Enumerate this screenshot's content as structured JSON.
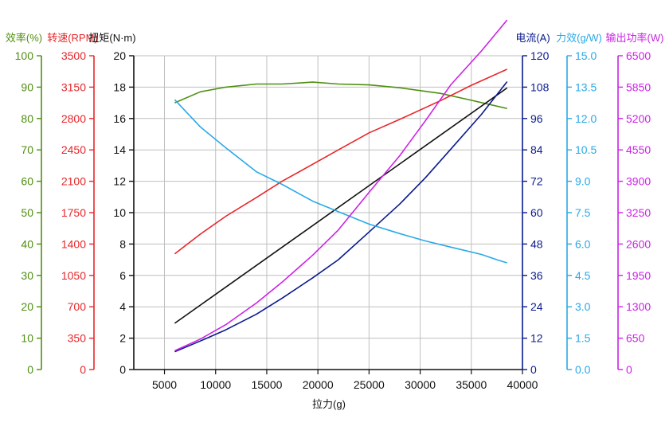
{
  "chart_data": {
    "type": "line",
    "xlabel": "拉力(g)",
    "x_ticks": [
      5000,
      10000,
      15000,
      20000,
      25000,
      30000,
      35000,
      40000
    ],
    "xlim": [
      2000,
      40000
    ],
    "grid": true,
    "axes": [
      {
        "id": "eff",
        "label": "效率(%)",
        "color": "#4e8f0f",
        "side": "left",
        "ylim": [
          0,
          100
        ],
        "ticks": [
          0,
          10,
          20,
          30,
          40,
          50,
          60,
          70,
          80,
          90,
          100
        ],
        "tick_labels": [
          "0",
          "10",
          "20",
          "30",
          "40",
          "50",
          "60",
          "70",
          "80",
          "90",
          "100"
        ]
      },
      {
        "id": "rpm",
        "label": "转速(RPM)",
        "color": "#e8262a",
        "side": "left",
        "ylim": [
          0,
          3500
        ],
        "ticks": [
          0,
          350,
          700,
          1050,
          1400,
          1750,
          2100,
          2450,
          2800,
          3150,
          3500
        ],
        "tick_labels": [
          "0",
          "350",
          "700",
          "1050",
          "1400",
          "1750",
          "2100",
          "2450",
          "2800",
          "3150",
          "3500"
        ]
      },
      {
        "id": "torque",
        "label": "扭矩(N·m)",
        "color": "#111111",
        "side": "left",
        "ylim": [
          0,
          20
        ],
        "ticks": [
          0,
          2,
          4,
          6,
          8,
          10,
          12,
          14,
          16,
          18,
          20
        ],
        "tick_labels": [
          "0",
          "2",
          "4",
          "6",
          "8",
          "10",
          "12",
          "14",
          "16",
          "18",
          "20"
        ]
      },
      {
        "id": "current",
        "label": "电流(A)",
        "color": "#0a1a8c",
        "side": "right",
        "ylim": [
          0,
          120
        ],
        "ticks": [
          0,
          12,
          24,
          36,
          48,
          60,
          72,
          84,
          96,
          108,
          120
        ],
        "tick_labels": [
          "0",
          "12",
          "24",
          "36",
          "48",
          "60",
          "72",
          "84",
          "96",
          "108",
          "120"
        ]
      },
      {
        "id": "power_eff",
        "label": "力效(g/W)",
        "color": "#29a9e6",
        "side": "right",
        "ylim": [
          0,
          15
        ],
        "ticks": [
          0,
          1.5,
          3,
          4.5,
          6,
          7.5,
          9,
          10.5,
          12,
          13.5,
          15
        ],
        "tick_labels": [
          "0.0",
          "1.5",
          "3.0",
          "4.5",
          "6.0",
          "7.5",
          "9.0",
          "10.5",
          "12.0",
          "13.5",
          "15.0"
        ]
      },
      {
        "id": "power",
        "label": "输出功率(W)",
        "color": "#cc22e6",
        "side": "right",
        "ylim": [
          0,
          6500
        ],
        "ticks": [
          0,
          650,
          1300,
          1950,
          2600,
          3250,
          3900,
          4550,
          5200,
          5850,
          6500
        ],
        "tick_labels": [
          "0",
          "650",
          "1300",
          "1950",
          "2600",
          "3250",
          "3900",
          "4550",
          "5200",
          "5850",
          "6500"
        ]
      }
    ],
    "series": [
      {
        "axis": "eff",
        "color": "#4e8f0f",
        "x": [
          6000,
          8500,
          11000,
          14000,
          16500,
          19500,
          22000,
          25000,
          28000,
          32000,
          35000,
          38500
        ],
        "y": [
          85,
          88.5,
          90,
          91,
          91,
          91.6,
          91,
          90.7,
          89.8,
          88,
          85.8,
          83.2
        ]
      },
      {
        "axis": "rpm",
        "color": "#e8262a",
        "x": [
          6000,
          8500,
          11000,
          14000,
          16500,
          19500,
          22000,
          25000,
          28000,
          32000,
          35000,
          38500
        ],
        "y": [
          1290,
          1510,
          1710,
          1920,
          2100,
          2290,
          2450,
          2640,
          2790,
          3000,
          3170,
          3350
        ]
      },
      {
        "axis": "torque",
        "color": "#111111",
        "x": [
          6000,
          38500
        ],
        "y": [
          2.95,
          17.95
        ]
      },
      {
        "axis": "current",
        "color": "#0a1a8c",
        "x": [
          6000,
          8500,
          11000,
          14000,
          16500,
          19500,
          22000,
          25000,
          28000,
          30500,
          33000,
          36000,
          38500
        ],
        "y": [
          6.8,
          10.9,
          15.2,
          21.2,
          27.3,
          35.1,
          42,
          52.6,
          63.3,
          73.3,
          84.3,
          97.6,
          110.1
        ]
      },
      {
        "axis": "power_eff",
        "color": "#29a9e6",
        "x": [
          6000,
          8500,
          11000,
          14000,
          16500,
          19500,
          22000,
          25000,
          28000,
          30500,
          33000,
          36000,
          37500,
          38500
        ],
        "y": [
          12.9,
          11.6,
          10.6,
          9.45,
          8.85,
          8.05,
          7.55,
          6.95,
          6.5,
          6.15,
          5.85,
          5.5,
          5.25,
          5.1
        ]
      },
      {
        "axis": "power",
        "color": "#cc22e6",
        "x": [
          6000,
          8500,
          11000,
          14000,
          16500,
          19500,
          22000,
          25000,
          28000,
          30500,
          33000,
          36000,
          38500
        ],
        "y": [
          390,
          630,
          930,
          1380,
          1810,
          2370,
          2890,
          3670,
          4430,
          5150,
          5900,
          6600,
          7240
        ]
      }
    ]
  }
}
